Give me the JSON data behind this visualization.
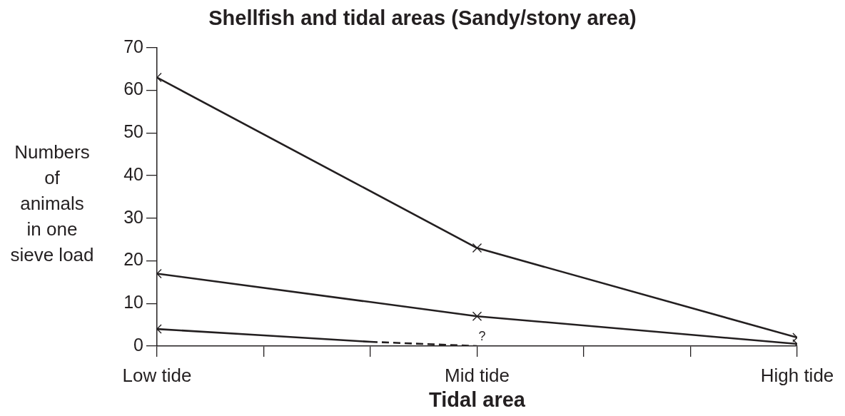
{
  "chart_data": {
    "type": "line",
    "title": "Shellfish and tidal areas (Sandy/stony area)",
    "xlabel": "Tidal area",
    "ylabel": "Numbers\nof\nanimals\nin one\nsieve load",
    "categories": [
      "Low tide",
      null,
      null,
      "Mid tide",
      null,
      null,
      "High tide"
    ],
    "ylim": [
      0,
      70
    ],
    "yticks": [
      0,
      10,
      20,
      30,
      40,
      50,
      60,
      70
    ],
    "marker": "cross",
    "line_style": "solid",
    "series": [
      {
        "color": "#231f20",
        "x": [
          "Low tide",
          "Mid tide",
          "High tide"
        ],
        "values": [
          63,
          23,
          2
        ]
      },
      {
        "color": "#231f20",
        "x": [
          "Low tide",
          "Mid tide",
          "High tide"
        ],
        "values": [
          17,
          7,
          0.5
        ]
      },
      {
        "color": "#231f20",
        "values": [
          4,
          2.5,
          1,
          null,
          null,
          null,
          null
        ],
        "marker": "none"
      },
      {
        "color": "#231f20",
        "values": [
          null,
          null,
          1,
          0,
          null,
          null,
          null
        ],
        "marker": "none",
        "line_style": "dashed"
      },
      {
        "type": "scatter",
        "color": "#231f20",
        "x": [
          "Low tide"
        ],
        "values": [
          4
        ]
      }
    ],
    "annotations": [
      {
        "text": "?",
        "x": "Mid tide",
        "y": 0
      }
    ]
  }
}
